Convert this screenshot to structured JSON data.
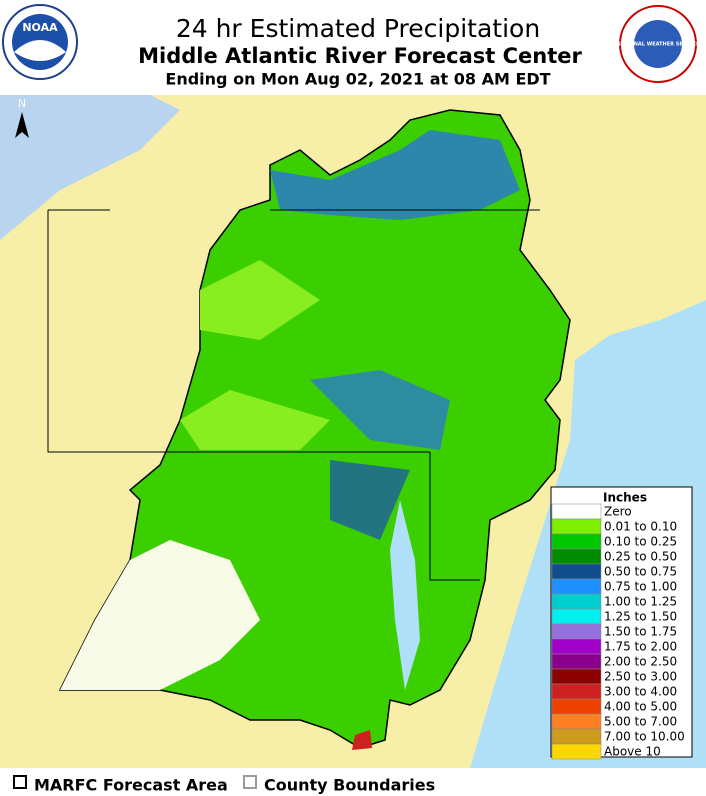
{
  "header": {
    "title": "24 hr Estimated Precipitation",
    "subtitle": "Middle Atlantic River Forecast Center",
    "date": "Ending on Mon Aug 02, 2021 at 08 AM EDT"
  },
  "logos": {
    "left": "NOAA",
    "right": "NATIONAL WEATHER SERVICE"
  },
  "map": {
    "north": "N"
  },
  "legend": {
    "title": "Inches",
    "entries": [
      {
        "label": "Zero",
        "color": "#ffffff"
      },
      {
        "label": "0.01 to 0.10",
        "color": "#7cf000"
      },
      {
        "label": "0.10 to 0.25",
        "color": "#00c800"
      },
      {
        "label": "0.25 to 0.50",
        "color": "#008c00"
      },
      {
        "label": "0.50 to 0.75",
        "color": "#104e8b"
      },
      {
        "label": "0.75 to 1.00",
        "color": "#1e90ff"
      },
      {
        "label": "1.00 to 1.25",
        "color": "#00cdcd"
      },
      {
        "label": "1.25 to 1.50",
        "color": "#00eeee"
      },
      {
        "label": "1.50 to 1.75",
        "color": "#9370db"
      },
      {
        "label": "1.75 to 2.00",
        "color": "#a000c8"
      },
      {
        "label": "2.00 to 2.50",
        "color": "#8b008b"
      },
      {
        "label": "2.50 to 3.00",
        "color": "#8b0000"
      },
      {
        "label": "3.00 to 4.00",
        "color": "#cd2020"
      },
      {
        "label": "4.00 to 5.00",
        "color": "#ee4000"
      },
      {
        "label": "5.00 to 7.00",
        "color": "#ff7f24"
      },
      {
        "label": "7.00 to 10.00",
        "color": "#cd9b1d"
      },
      {
        "label": "Above 10",
        "color": "#ffd700"
      }
    ]
  },
  "footer": {
    "items": [
      "MARFC Forecast Area",
      "County Boundaries"
    ]
  }
}
